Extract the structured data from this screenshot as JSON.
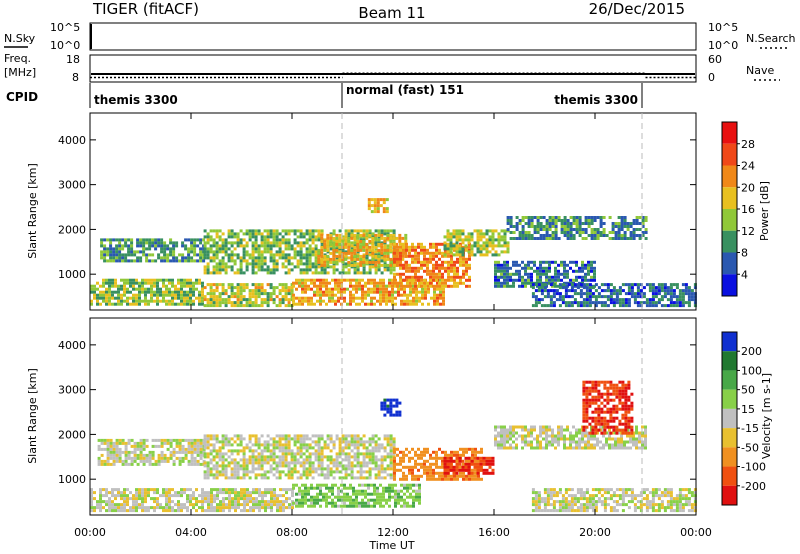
{
  "header": {
    "radar": "TIGER (fitACF)",
    "beam": "Beam 11",
    "date": "26/Dec/2015"
  },
  "noise_panel": {
    "left_label": "N.Sky",
    "right_label": "N.Search",
    "ticks": [
      "10^5",
      "10^0"
    ]
  },
  "freq_panel": {
    "left_label_1": "Freq.",
    "left_label_2": "[MHz]",
    "left_ticks": [
      "18",
      "8"
    ],
    "right_label": "Nave",
    "right_ticks": [
      "60",
      "0"
    ]
  },
  "cpid_panel": {
    "label": "CPID",
    "modes": [
      {
        "text": "themis 3300",
        "start_hour": 0,
        "end_hour": 10
      },
      {
        "text": "normal (fast) 151",
        "start_hour": 10,
        "end_hour": 22
      },
      {
        "text": "themis 3300",
        "start_hour": 22,
        "end_hour": 24
      }
    ]
  },
  "power_panel": {
    "ylabel": "Slant Range [km]",
    "cbar_label": "Power [dB]",
    "cbar_ticks": [
      "28",
      "24",
      "20",
      "16",
      "12",
      "8",
      "4"
    ],
    "cbar_colors": [
      "#e81010",
      "#f04818",
      "#f08818",
      "#e8c020",
      "#90c838",
      "#389060",
      "#2a58b0",
      "#0a10e0"
    ]
  },
  "velocity_panel": {
    "ylabel": "Slant Range [km]",
    "cbar_label": "Velocity [m s-1]",
    "cbar_ticks": [
      "200",
      "100",
      "50",
      "15",
      "-15",
      "-50",
      "-100",
      "-200"
    ],
    "cbar_colors": [
      "#1030d0",
      "#207830",
      "#48a848",
      "#88d048",
      "#c0c0c0",
      "#e8c030",
      "#f09020",
      "#f05010",
      "#e01010"
    ]
  },
  "xaxis": {
    "label": "Time UT",
    "ticks": [
      "00:00",
      "04:00",
      "08:00",
      "12:00",
      "16:00",
      "20:00",
      "00:00"
    ]
  },
  "chart_data": {
    "type": "heatmap",
    "title": "TIGER (fitACF)  Beam 11  26/Dec/2015",
    "xlabel": "Time UT",
    "ylabel": "Slant Range [km]",
    "xlim_hours": [
      0,
      24
    ],
    "ylim_km": [
      200,
      4600
    ],
    "x_ticks_hours": [
      0,
      4,
      8,
      12,
      16,
      20,
      24
    ],
    "y_ticks_km": [
      1000,
      2000,
      3000,
      4000
    ],
    "mode_boundaries_hours": [
      10,
      22
    ],
    "freq_mhz_approx": [
      {
        "start": 0,
        "end": 24,
        "value": 10
      }
    ],
    "nave_approx": [
      {
        "start": 0,
        "end": 10,
        "value": 8
      },
      {
        "start": 10,
        "end": 22,
        "value": 18
      },
      {
        "start": 22,
        "end": 24,
        "value": 8
      }
    ],
    "power_db_regions": [
      {
        "t": [
          0.4,
          4.5
        ],
        "r": [
          1300,
          1800
        ],
        "dB": 10
      },
      {
        "t": [
          4.5,
          12.0
        ],
        "r": [
          1000,
          2000
        ],
        "dB": 13
      },
      {
        "t": [
          0.0,
          4.5
        ],
        "r": [
          300,
          900
        ],
        "dB": 14
      },
      {
        "t": [
          4.5,
          8.0
        ],
        "r": [
          300,
          800
        ],
        "dB": 16
      },
      {
        "t": [
          8.0,
          14.0
        ],
        "r": [
          300,
          900
        ],
        "dB": 20
      },
      {
        "t": [
          9.0,
          12.5
        ],
        "r": [
          1200,
          1900
        ],
        "dB": 19
      },
      {
        "t": [
          12.0,
          15.0
        ],
        "r": [
          700,
          1700
        ],
        "dB": 22
      },
      {
        "t": [
          14.0,
          16.5
        ],
        "r": [
          1400,
          2000
        ],
        "dB": 15
      },
      {
        "t": [
          16.5,
          22.0
        ],
        "r": [
          1800,
          2300
        ],
        "dB": 9
      },
      {
        "t": [
          16.0,
          20.0
        ],
        "r": [
          700,
          1300
        ],
        "dB": 8
      },
      {
        "t": [
          17.5,
          24.0
        ],
        "r": [
          300,
          800
        ],
        "dB": 7
      },
      {
        "t": [
          11.0,
          11.8
        ],
        "r": [
          2400,
          2700
        ],
        "dB": 18
      }
    ],
    "velocity_ms_regions": [
      {
        "t": [
          0.3,
          4.5
        ],
        "r": [
          1300,
          1900
        ],
        "v": 0
      },
      {
        "t": [
          4.5,
          12.0
        ],
        "r": [
          1000,
          2000
        ],
        "v": 0
      },
      {
        "t": [
          0.0,
          8.0
        ],
        "r": [
          300,
          800
        ],
        "v": 0
      },
      {
        "t": [
          8.0,
          13.0
        ],
        "r": [
          400,
          900
        ],
        "v": 40
      },
      {
        "t": [
          12.0,
          15.5
        ],
        "r": [
          1000,
          1700
        ],
        "v": -80
      },
      {
        "t": [
          14.0,
          16.0
        ],
        "r": [
          1100,
          1500
        ],
        "v": -200
      },
      {
        "t": [
          16.0,
          22.0
        ],
        "r": [
          1700,
          2200
        ],
        "v": 0
      },
      {
        "t": [
          11.5,
          12.3
        ],
        "r": [
          2400,
          2800
        ],
        "v": 220
      },
      {
        "t": [
          19.5,
          21.5
        ],
        "r": [
          2000,
          3200
        ],
        "v": -200
      },
      {
        "t": [
          17.5,
          24.0
        ],
        "r": [
          300,
          800
        ],
        "v": 0
      }
    ]
  }
}
